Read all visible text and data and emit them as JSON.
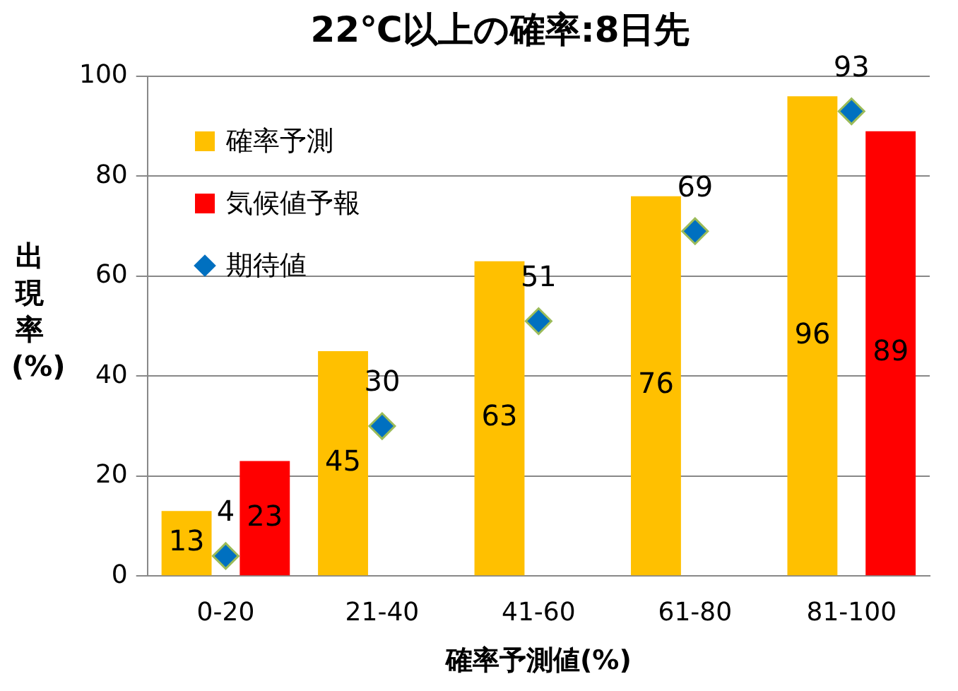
{
  "chart_data": {
    "type": "bar",
    "title": "22℃以上の確率:8日先",
    "xlabel": "確率予測値(%)",
    "ylabel": "出現率(%)",
    "categories": [
      "0-20",
      "21-40",
      "41-60",
      "61-80",
      "81-100"
    ],
    "series": [
      {
        "name": "確率予測",
        "color": "#ffc000",
        "values": [
          13,
          45,
          63,
          76,
          96
        ]
      },
      {
        "name": "気候値予報",
        "color": "#ff0000",
        "values": [
          23,
          null,
          null,
          null,
          89
        ]
      },
      {
        "name": "期待値",
        "type": "scatter",
        "color": "#0070c0",
        "marker": "diamond",
        "x": [
          "0-20",
          "21-40",
          "41-60",
          "61-80",
          "81-100"
        ],
        "values": [
          4,
          30,
          51,
          69,
          93
        ]
      }
    ],
    "ylim": [
      0,
      100
    ],
    "yticks": [
      0,
      20,
      40,
      60,
      80,
      100
    ],
    "grid": "y",
    "legend": "top left",
    "data_labels": true
  }
}
